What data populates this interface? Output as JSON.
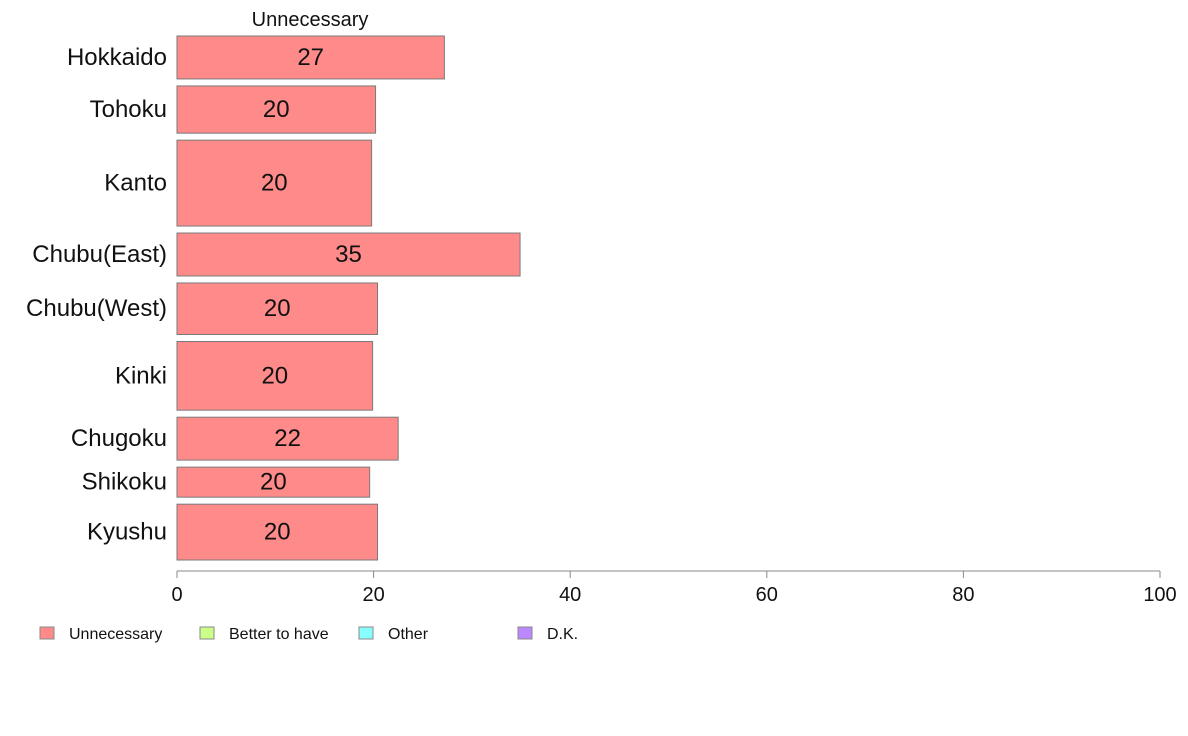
{
  "chart_data": {
    "type": "bar",
    "orientation": "horizontal",
    "stacked": true,
    "column_title": "Unnecessary",
    "categories": [
      "Hokkaido",
      "Tohoku",
      "Kanto",
      "Chubu(East)",
      "Chubu(West)",
      "Kinki",
      "Chugoku",
      "Shikoku",
      "Kyushu"
    ],
    "bar_widths_relative": [
      1.0,
      1.1,
      2.0,
      1.0,
      1.2,
      1.6,
      1.0,
      0.7,
      1.3
    ],
    "series": [
      {
        "name": "Unnecessary",
        "color": "#ff8a8a",
        "values": [
          27.2,
          20.2,
          19.8,
          34.9,
          20.4,
          19.9,
          22.5,
          19.6,
          20.4
        ],
        "labels": [
          "27",
          "20",
          "20",
          "35",
          "20",
          "20",
          "22",
          "20",
          "20"
        ]
      }
    ],
    "legend_entries": [
      {
        "name": "Unnecessary",
        "color": "#ff8a8a"
      },
      {
        "name": "Better to have",
        "color": "#ccff88"
      },
      {
        "name": "Other",
        "color": "#88ffff"
      },
      {
        "name": "D.K.",
        "color": "#bb88ff"
      }
    ],
    "xlim": [
      0,
      100
    ],
    "xticks": [
      0,
      20,
      40,
      60,
      80,
      100
    ],
    "grid": false,
    "legend_position": "bottom-left"
  }
}
